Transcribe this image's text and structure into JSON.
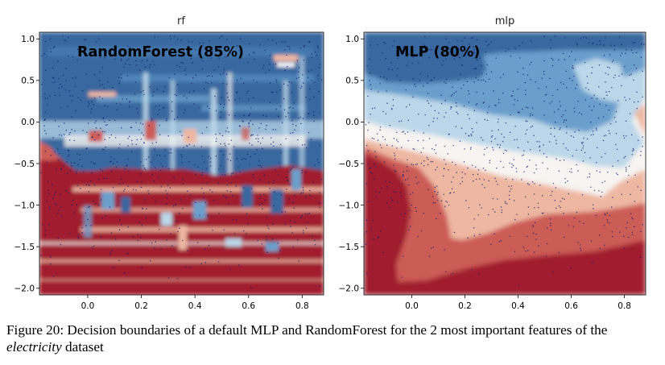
{
  "figure": {
    "caption_prefix": "Figure 20: Decision boundaries of a default MLP and RandomForest for the 2 most important features of the ",
    "caption_italic": "electricity",
    "caption_suffix": " dataset"
  },
  "colors": {
    "dark_red": "#a01e2e",
    "red": "#cc5c56",
    "light_red": "#eeb7a2",
    "white": "#f7f4f1",
    "light_blue": "#bcd7e9",
    "blue": "#6b9fcc",
    "dark_blue": "#37689f",
    "navy_dots": "#0b1a6e"
  },
  "chart_data": [
    {
      "type": "heatmap",
      "title": "rf",
      "annotation": "RandomForest (85%)",
      "xlabel": "",
      "ylabel": "",
      "xlim": [
        -0.18,
        0.88
      ],
      "ylim": [
        -2.08,
        1.08
      ],
      "xticks": [
        0.0,
        0.2,
        0.4,
        0.6,
        0.8
      ],
      "xtick_labels": [
        "0.0",
        "0.2",
        "0.4",
        "0.6",
        "0.8"
      ],
      "yticks": [
        1.0,
        0.5,
        0.0,
        -0.5,
        -1.0,
        -1.5,
        -2.0
      ],
      "ytick_labels": [
        "1.0",
        "0.5",
        "0.0",
        "−0.5",
        "−1.0",
        "−1.5",
        "−2.0"
      ],
      "class_regions": [
        {
          "class": "blue",
          "description": "y above about -0.4 (with vertical streaks)"
        },
        {
          "class": "red",
          "description": "y below about -0.6, left edge x below 0.0"
        }
      ]
    },
    {
      "type": "heatmap",
      "title": "mlp",
      "annotation": "MLP (80%)",
      "xlabel": "",
      "ylabel": "",
      "xlim": [
        -0.18,
        0.88
      ],
      "ylim": [
        -2.08,
        1.08
      ],
      "xticks": [
        0.0,
        0.2,
        0.4,
        0.6,
        0.8
      ],
      "xtick_labels": [
        "0.0",
        "0.2",
        "0.4",
        "0.6",
        "0.8"
      ],
      "yticks": [
        1.0,
        0.5,
        0.0,
        -0.5,
        -1.0,
        -1.5,
        -2.0
      ],
      "ytick_labels": [
        "1.0",
        "0.5",
        "0.0",
        "−0.5",
        "−1.0",
        "−1.5",
        "−2.0"
      ],
      "contour_bands": [
        "dark_blue",
        "blue",
        "light_blue",
        "white",
        "light_red",
        "red",
        "dark_red"
      ]
    }
  ]
}
